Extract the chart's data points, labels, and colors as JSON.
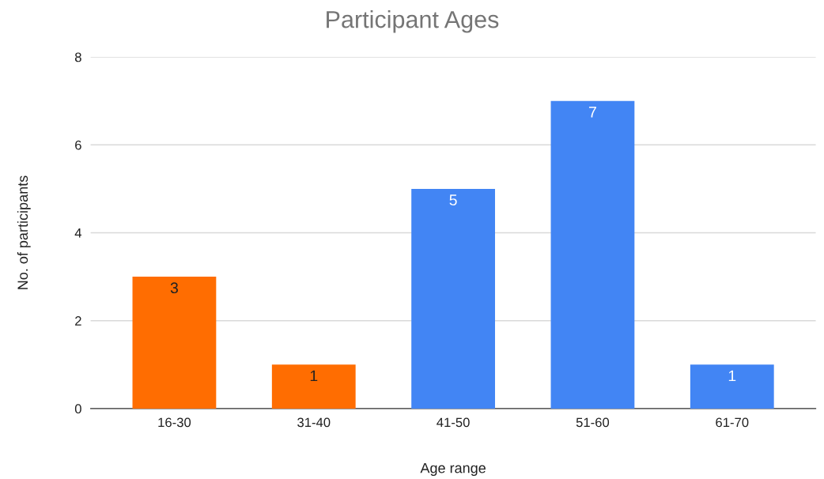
{
  "chart_data": {
    "type": "bar",
    "title": "Participant Ages",
    "xlabel": "Age range",
    "ylabel": "No. of participants",
    "categories": [
      "16-30",
      "31-40",
      "41-50",
      "51-60",
      "61-70"
    ],
    "values": [
      3,
      1,
      5,
      7,
      1
    ],
    "colors": [
      "#ff6d01",
      "#ff6d01",
      "#4285f4",
      "#4285f4",
      "#4285f4"
    ],
    "ylim": [
      0,
      8
    ],
    "yticks": [
      0,
      2,
      4,
      6,
      8
    ],
    "grid": "y",
    "data_labels": true
  }
}
